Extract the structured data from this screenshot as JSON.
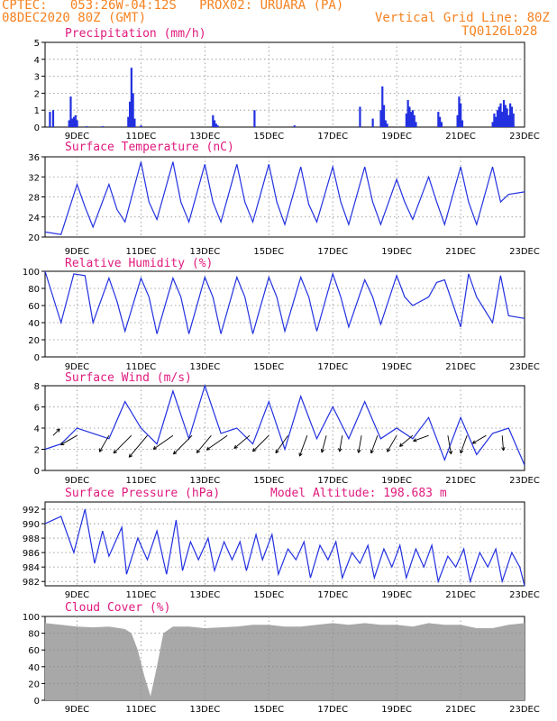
{
  "header": {
    "line1": "CPTEC:   053:26W-04:12S   PROX02: URUARA (PA)",
    "line2": "08DEC2020 80Z (GMT)",
    "vgrid": "Vertical Grid Line: 80Z",
    "code": "TQ0126L028"
  },
  "panels": {
    "precip_title": "Precipitation  (mm/h)",
    "temp_title": "Surface Temperature (nC)",
    "rh_title": "Relative Humidity (%)",
    "wind_title": "Surface Wind  (m/s)",
    "press_title": "Surface Pressure (hPa)",
    "altitude": "Model Altitude: 198.683  m",
    "cloud_title": "Cloud Cover (%)"
  },
  "x_dates": [
    "9DEC",
    "11DEC",
    "13DEC",
    "15DEC",
    "17DEC",
    "19DEC",
    "21DEC",
    "23DEC"
  ],
  "colors": {
    "header": "#f58220",
    "title": "#e0197d",
    "line": "#2230e0",
    "cloud": "#a8a8a8",
    "grid": "#8a8a8a"
  },
  "chart_data": [
    {
      "type": "bar",
      "title": "Precipitation  (mm/h)",
      "ylabel": "",
      "ylim": [
        0,
        5
      ],
      "yticks": [
        "0",
        "1",
        "2",
        "3",
        "4",
        "5"
      ],
      "x_unit": "days after 08DEC2020",
      "x": [
        0.15,
        0.25,
        0.75,
        0.8,
        0.85,
        0.9,
        0.95,
        1.0,
        1.3,
        1.8,
        2.6,
        2.65,
        2.7,
        2.75,
        2.8,
        3.0,
        5.25,
        5.3,
        5.35,
        5.4,
        6.55,
        7.8,
        9.85,
        10.25,
        10.5,
        10.55,
        10.6,
        10.65,
        10.7,
        11.3,
        11.35,
        11.4,
        11.45,
        11.5,
        11.55,
        11.6,
        12.3,
        12.35,
        12.4,
        12.9,
        12.95,
        13.0,
        13.05,
        14.0,
        14.05,
        14.1,
        14.15,
        14.2,
        14.25,
        14.3,
        14.35,
        14.4,
        14.45,
        14.5,
        14.55,
        14.6,
        14.65
      ],
      "values": [
        0.9,
        1.0,
        0.4,
        1.8,
        0.5,
        0.6,
        0.7,
        0.4,
        0.05,
        0.05,
        0.6,
        1.5,
        3.5,
        2.0,
        0.5,
        0.1,
        0.7,
        0.4,
        0.2,
        0.1,
        1.0,
        0.1,
        1.2,
        0.5,
        1.0,
        2.4,
        1.3,
        0.4,
        0.2,
        0.8,
        1.6,
        1.2,
        0.9,
        1.0,
        0.7,
        0.3,
        0.9,
        0.6,
        0.3,
        0.7,
        1.8,
        1.4,
        0.4,
        0.3,
        0.8,
        0.6,
        1.0,
        1.2,
        1.4,
        0.9,
        1.6,
        1.3,
        1.1,
        0.7,
        1.4,
        1.2,
        0.8
      ]
    },
    {
      "type": "line",
      "title": "Surface Temperature (nC)",
      "ylim": [
        20,
        36
      ],
      "yticks": [
        "20",
        "24",
        "28",
        "32",
        "36"
      ],
      "x_unit": "days after 08DEC2020",
      "x": [
        0,
        0.5,
        1,
        1.25,
        1.5,
        2,
        2.25,
        2.5,
        3,
        3.25,
        3.5,
        4,
        4.25,
        4.5,
        5,
        5.25,
        5.5,
        6,
        6.25,
        6.5,
        7,
        7.25,
        7.5,
        8,
        8.25,
        8.5,
        9,
        9.25,
        9.5,
        10,
        10.25,
        10.5,
        11,
        11.25,
        11.5,
        12,
        12.25,
        12.5,
        13,
        13.25,
        13.5,
        14,
        14.25,
        14.5,
        15
      ],
      "values": [
        21,
        20.5,
        30.5,
        26,
        22,
        30.5,
        25.5,
        23,
        35,
        27,
        23.5,
        35,
        27,
        23,
        34.5,
        27,
        23,
        34.5,
        27,
        23,
        34.5,
        27,
        22.5,
        34,
        26.5,
        23,
        34,
        27,
        22.5,
        34,
        27,
        22.5,
        31.5,
        27,
        23.5,
        32,
        27,
        22.5,
        34,
        27,
        22.5,
        34,
        27,
        28.5,
        29
      ]
    },
    {
      "type": "line",
      "title": "Relative Humidity (%)",
      "ylim": [
        0,
        100
      ],
      "yticks": [
        "0",
        "20",
        "40",
        "60",
        "80",
        "100"
      ],
      "x_unit": "days after 08DEC2020",
      "x": [
        0,
        0.5,
        0.9,
        1.25,
        1.5,
        2,
        2.25,
        2.5,
        3,
        3.25,
        3.5,
        4,
        4.25,
        4.5,
        5,
        5.25,
        5.5,
        6,
        6.25,
        6.5,
        7,
        7.25,
        7.5,
        8,
        8.25,
        8.5,
        9,
        9.25,
        9.5,
        10,
        10.25,
        10.5,
        11,
        11.25,
        11.5,
        12,
        12.25,
        12.5,
        13,
        13.25,
        13.5,
        14,
        14.25,
        14.5,
        15
      ],
      "values": [
        100,
        40,
        97,
        95,
        40,
        92,
        65,
        30,
        92,
        70,
        27,
        92,
        70,
        27,
        93,
        70,
        27,
        93,
        70,
        27,
        93,
        70,
        30,
        93,
        70,
        30,
        97,
        70,
        35,
        90,
        70,
        38,
        95,
        70,
        60,
        70,
        87,
        90,
        35,
        97,
        70,
        40,
        95,
        48,
        45
      ]
    },
    {
      "type": "line",
      "title": "Surface Wind  (m/s)",
      "ylim": [
        0,
        8
      ],
      "yticks": [
        "0",
        "2",
        "4",
        "6",
        "8"
      ],
      "x_unit": "days after 08DEC2020",
      "x": [
        0,
        0.5,
        1,
        1.5,
        2,
        2.5,
        3,
        3.5,
        4,
        4.5,
        5,
        5.5,
        6,
        6.5,
        7,
        7.5,
        8,
        8.5,
        9,
        9.5,
        10,
        10.5,
        11,
        11.5,
        12,
        12.5,
        13,
        13.5,
        14,
        14.5,
        15
      ],
      "values": [
        2,
        2.5,
        4,
        3.5,
        3,
        6.5,
        4,
        2.5,
        7.5,
        3,
        8,
        3.5,
        4,
        2.5,
        6.5,
        2,
        7,
        3,
        6,
        3,
        6.5,
        3,
        4,
        3,
        5,
        1,
        5,
        1.5,
        3.5,
        4,
        0.5
      ],
      "barb_x": [
        0.25,
        1,
        2,
        2.7,
        3.2,
        4,
        4.6,
        5.2,
        5.7,
        6.4,
        7,
        7.6,
        8.2,
        8.8,
        9.3,
        9.9,
        10.4,
        11,
        11.5,
        12,
        12.6,
        13.2,
        13.8,
        14.3
      ],
      "barb_dir": [
        45,
        210,
        240,
        225,
        230,
        215,
        225,
        230,
        215,
        220,
        225,
        235,
        250,
        255,
        260,
        260,
        250,
        240,
        220,
        200,
        280,
        250,
        210,
        275
      ],
      "barb_len": [
        1.5,
        3,
        3,
        4,
        4.5,
        3.8,
        4.2,
        3.6,
        4,
        3.2,
        3.6,
        3.4,
        3.5,
        2.8,
        2.6,
        2.8,
        3,
        3,
        2.7,
        2.6,
        3,
        3,
        2.5,
        2.4
      ]
    },
    {
      "type": "line",
      "title": "Surface Pressure (hPa)",
      "ylim": [
        981.4,
        993
      ],
      "yticks": [
        "982",
        "984",
        "986",
        "988",
        "990",
        "992"
      ],
      "x_unit": "days after 08DEC2020",
      "x": [
        0,
        0.5,
        0.9,
        1.25,
        1.55,
        1.8,
        2,
        2.4,
        2.55,
        2.9,
        3.2,
        3.5,
        3.8,
        4.1,
        4.3,
        4.55,
        4.8,
        5.1,
        5.3,
        5.6,
        5.85,
        6.1,
        6.3,
        6.6,
        6.8,
        7.1,
        7.3,
        7.6,
        7.85,
        8.1,
        8.3,
        8.6,
        8.85,
        9.1,
        9.3,
        9.6,
        9.85,
        10.1,
        10.3,
        10.6,
        10.85,
        11.1,
        11.3,
        11.6,
        11.85,
        12.1,
        12.3,
        12.6,
        12.85,
        13.1,
        13.3,
        13.6,
        13.85,
        14.1,
        14.3,
        14.6,
        14.85,
        15
      ],
      "values": [
        990,
        991,
        986,
        992,
        984.5,
        989,
        985.5,
        989.5,
        983,
        988,
        985,
        989,
        983,
        990.5,
        983.5,
        987.5,
        985,
        988,
        983.5,
        987.5,
        985,
        987.5,
        983.5,
        988.5,
        985,
        988.5,
        983,
        986.5,
        985,
        987.5,
        982.5,
        987,
        985,
        987.5,
        982.5,
        986,
        984.5,
        987,
        982.5,
        986.5,
        984,
        987,
        982.5,
        986.5,
        984,
        987,
        982,
        985.5,
        984,
        986.5,
        982,
        986,
        984,
        986.5,
        982,
        986,
        984,
        981
      ]
    },
    {
      "type": "area",
      "title": "Cloud Cover (%)",
      "ylim": [
        0,
        100
      ],
      "yticks": [
        "0",
        "20",
        "40",
        "60",
        "80",
        "100"
      ],
      "x_unit": "days after 08DEC2020",
      "x": [
        0,
        0.5,
        1,
        1.5,
        2,
        2.5,
        2.7,
        2.9,
        3.1,
        3.3,
        3.5,
        3.7,
        4,
        4.5,
        5,
        5.5,
        6,
        6.5,
        7,
        7.5,
        8,
        8.5,
        9,
        9.5,
        10,
        10.5,
        11,
        11.5,
        12,
        12.5,
        13,
        13.5,
        14,
        14.5,
        15
      ],
      "values": [
        92,
        90,
        88,
        87,
        88,
        85,
        80,
        60,
        30,
        5,
        40,
        80,
        88,
        88,
        86,
        87,
        88,
        90,
        90,
        88,
        88,
        90,
        92,
        90,
        92,
        90,
        90,
        88,
        92,
        90,
        90,
        86,
        86,
        90,
        92
      ]
    }
  ]
}
